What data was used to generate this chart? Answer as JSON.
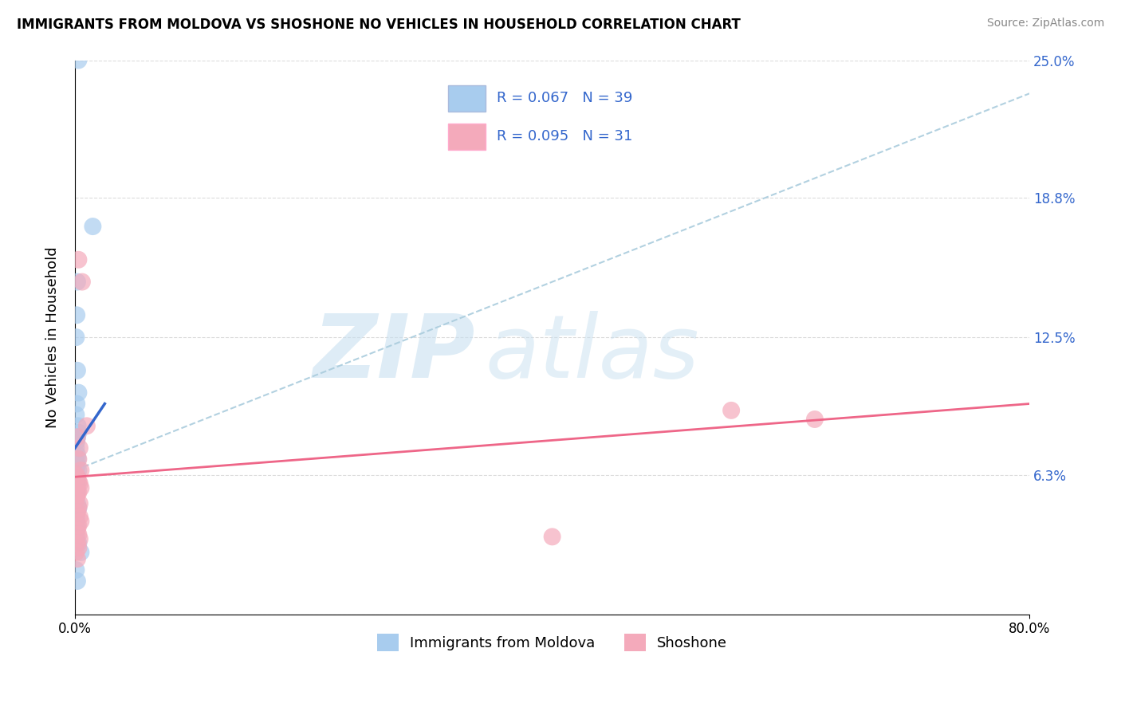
{
  "title": "IMMIGRANTS FROM MOLDOVA VS SHOSHONE NO VEHICLES IN HOUSEHOLD CORRELATION CHART",
  "source": "Source: ZipAtlas.com",
  "xlabel_blue": "Immigrants from Moldova",
  "xlabel_pink": "Shoshone",
  "ylabel": "No Vehicles in Household",
  "xlim": [
    0,
    80
  ],
  "ylim": [
    0,
    25
  ],
  "yticks": [
    0,
    6.3,
    12.5,
    18.8,
    25.0
  ],
  "ytick_labels": [
    "",
    "6.3%",
    "12.5%",
    "18.8%",
    "25.0%"
  ],
  "xtick_labels": [
    "0.0%",
    "80.0%"
  ],
  "legend_blue_R": "0.067",
  "legend_blue_N": "39",
  "legend_pink_R": "0.095",
  "legend_pink_N": "31",
  "blue_color": "#A8CCEE",
  "pink_color": "#F4AABB",
  "blue_line_color": "#3366CC",
  "pink_line_color": "#EE6688",
  "dashed_line_color": "#AACCDD",
  "blue_scatter_x": [
    0.3,
    1.5,
    0.2,
    0.15,
    0.1,
    0.2,
    0.3,
    0.15,
    0.1,
    0.25,
    0.3,
    0.2,
    0.15,
    0.1,
    0.2,
    0.25,
    0.1,
    0.15,
    0.2,
    0.3,
    0.1,
    0.2,
    0.15,
    0.25,
    0.1,
    0.2,
    0.15,
    0.1,
    0.2,
    0.3,
    0.1,
    0.15,
    0.2,
    0.1,
    0.15,
    0.3,
    0.5,
    0.1,
    0.2
  ],
  "blue_scatter_y": [
    25.0,
    17.5,
    15.0,
    13.5,
    12.5,
    11.0,
    10.0,
    9.5,
    9.0,
    8.5,
    8.2,
    8.0,
    7.8,
    7.5,
    7.2,
    7.0,
    6.9,
    6.8,
    6.7,
    6.5,
    6.4,
    6.2,
    6.1,
    5.9,
    5.8,
    5.6,
    5.4,
    5.2,
    5.0,
    4.8,
    4.5,
    4.3,
    4.0,
    3.8,
    3.5,
    3.2,
    2.8,
    2.0,
    1.5
  ],
  "pink_scatter_x": [
    0.3,
    0.6,
    1.0,
    0.2,
    0.4,
    0.3,
    0.5,
    0.1,
    0.2,
    0.3,
    0.4,
    0.5,
    0.3,
    0.2,
    0.1,
    0.4,
    55.0,
    62.0,
    0.3,
    0.2,
    0.4,
    0.5,
    0.3,
    0.2,
    0.3,
    0.4,
    0.2,
    0.3,
    0.1,
    0.2,
    40.0
  ],
  "pink_scatter_y": [
    16.0,
    15.0,
    8.5,
    8.0,
    7.5,
    7.0,
    6.5,
    6.3,
    6.2,
    6.0,
    5.9,
    5.7,
    5.5,
    5.4,
    5.2,
    5.0,
    9.2,
    8.8,
    4.8,
    4.6,
    4.4,
    4.2,
    4.0,
    3.8,
    3.6,
    3.4,
    3.2,
    3.0,
    2.8,
    2.5,
    3.5
  ],
  "blue_trend_x0": 0.0,
  "blue_trend_x1": 2.5,
  "blue_trend_y0": 7.5,
  "blue_trend_y1": 9.5,
  "pink_trend_x0": 0.0,
  "pink_trend_x1": 80.0,
  "pink_trend_y0": 6.2,
  "pink_trend_y1": 9.5,
  "dashed_x0": 0.0,
  "dashed_x1": 80.0,
  "dashed_y0": 6.5,
  "dashed_y1": 23.5
}
